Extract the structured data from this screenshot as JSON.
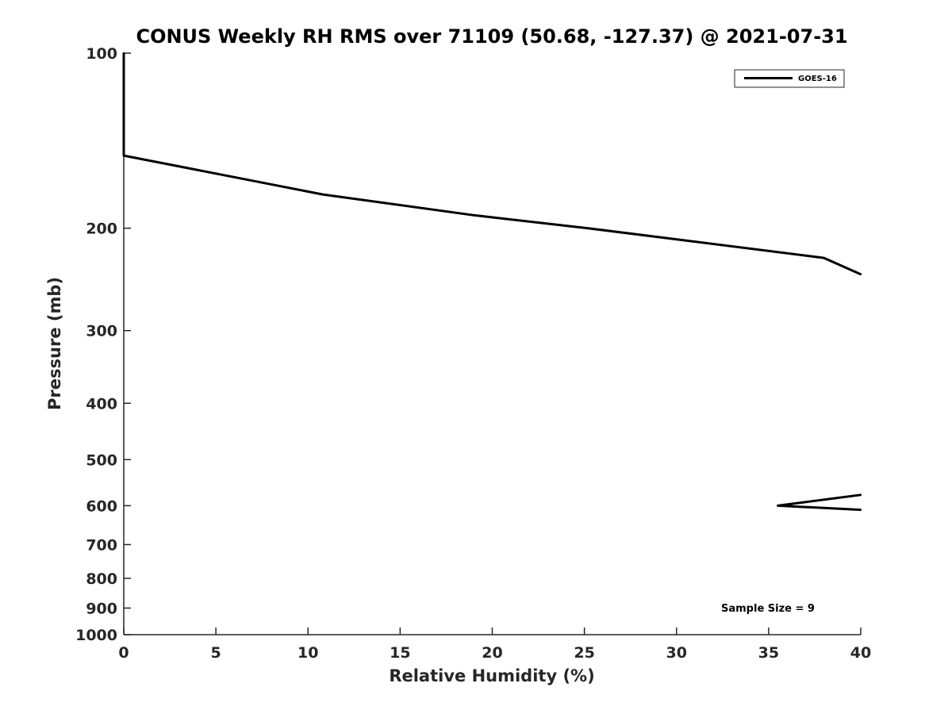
{
  "chart_data": {
    "type": "line",
    "title": "CONUS Weekly RH RMS over 71109 (50.68, -127.37) @ 2021-07-31",
    "xlabel": "Relative Humidity (%)",
    "ylabel": "Pressure (mb)",
    "xlim": [
      0,
      40
    ],
    "ylim": [
      1000,
      100
    ],
    "yscale": "log",
    "y_reversed": true,
    "xticks": [
      0,
      5,
      10,
      15,
      20,
      25,
      30,
      35,
      40
    ],
    "yticks": [
      100,
      200,
      300,
      400,
      500,
      600,
      700,
      800,
      900,
      1000
    ],
    "grid": false,
    "legend_location": "top-right",
    "annotation": "Sample Size = 9",
    "series": [
      {
        "name": "GOES-16",
        "color": "#000000",
        "segments": [
          [
            {
              "x": 0,
              "y": 100
            },
            {
              "x": 0,
              "y": 150
            },
            {
              "x": 10.8,
              "y": 175
            },
            {
              "x": 19,
              "y": 190
            },
            {
              "x": 25.2,
              "y": 200
            },
            {
              "x": 38,
              "y": 225
            },
            {
              "x": 40,
              "y": 240
            }
          ],
          [
            {
              "x": 40,
              "y": 575
            },
            {
              "x": 35.5,
              "y": 600
            },
            {
              "x": 40,
              "y": 610
            }
          ]
        ]
      }
    ]
  }
}
